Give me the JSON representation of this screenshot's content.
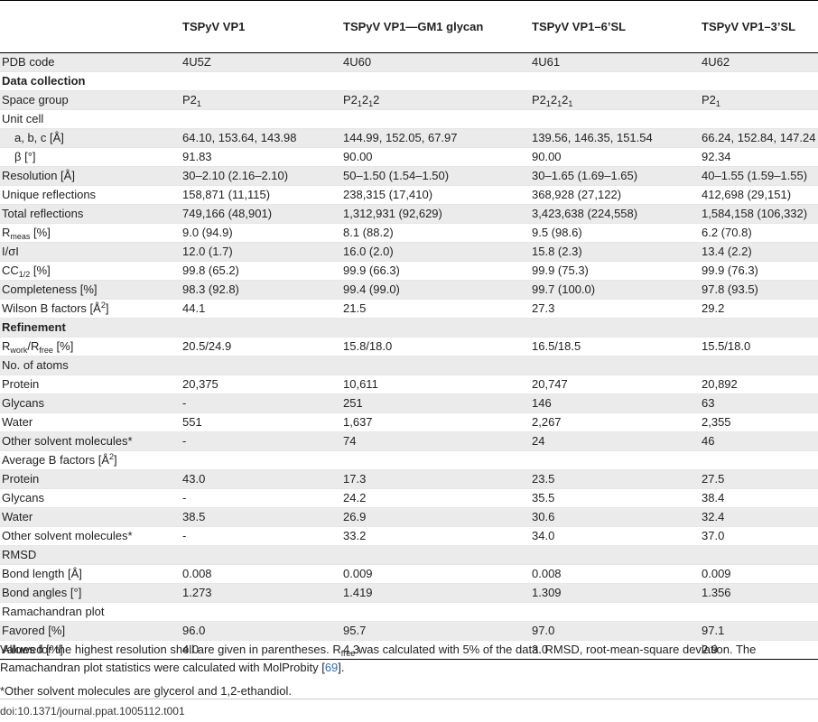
{
  "columns": [
    "",
    "TSPyV VP1",
    "TSPyV VP1—GM1 glycan",
    "TSPyV VP1–6’SL",
    "TSPyV VP1–3’SL"
  ],
  "rows": [
    {
      "label": "PDB code",
      "values": [
        "4U5Z",
        "4U60",
        "4U61",
        "4U62"
      ]
    },
    {
      "label": "Data collection",
      "section": true
    },
    {
      "label": "Space group",
      "values": [
        "P2₁",
        "P2₁2₁2",
        "P2₁2₁2₁",
        "P2₁"
      ]
    },
    {
      "label": "Unit cell",
      "values": [
        "",
        "",
        "",
        ""
      ]
    },
    {
      "label": "a, b, c [Å]",
      "indent": true,
      "values": [
        "64.10, 153.64, 143.98",
        "144.99, 152.05, 67.97",
        "139.56, 146.35, 151.54",
        "66.24, 152.84, 147.24"
      ]
    },
    {
      "label": "β [°]",
      "indent": true,
      "values": [
        "91.83",
        "90.00",
        "90.00",
        "92.34"
      ]
    },
    {
      "label": "Resolution [Å]",
      "values": [
        "30–2.10 (2.16–2.10)",
        "50–1.50 (1.54–1.50)",
        "30–1.65 (1.69–1.65)",
        "40–1.55 (1.59–1.55)"
      ]
    },
    {
      "label": "Unique reflections",
      "values": [
        "158,871 (11,115)",
        "238,315 (17,410)",
        "368,928 (27,122)",
        "412,698 (29,151)"
      ]
    },
    {
      "label": "Total reflections",
      "values": [
        "749,166 (48,901)",
        "1,312,931 (92,629)",
        "3,423,638 (224,558)",
        "1,584,158 (106,332)"
      ]
    },
    {
      "label": "R_meas [%]",
      "values": [
        "9.0 (94.9)",
        "8.1 (88.2)",
        "9.5 (98.6)",
        "6.2 (70.8)"
      ]
    },
    {
      "label": "I/σI",
      "values": [
        "12.0 (1.7)",
        "16.0 (2.0)",
        "15.8 (2.3)",
        "13.4 (2.2)"
      ]
    },
    {
      "label": "CC1/2 [%]",
      "values": [
        "99.8 (65.2)",
        "99.9 (66.3)",
        "99.9 (75.3)",
        "99.9 (76.3)"
      ]
    },
    {
      "label": "Completeness [%]",
      "values": [
        "98.3 (92.8)",
        "99.4 (99.0)",
        "99.7 (100.0)",
        "97.8 (93.5)"
      ]
    },
    {
      "label": "Wilson B factors [Å2]",
      "values": [
        "44.1",
        "21.5",
        "27.3",
        "29.2"
      ]
    },
    {
      "label": "Refinement",
      "section": true
    },
    {
      "label": "Rwork/Rfree [%]",
      "values": [
        "20.5/24.9",
        "15.8/18.0",
        "16.5/18.5",
        "15.5/18.0"
      ]
    },
    {
      "label": "No. of atoms",
      "values": [
        "",
        "",
        "",
        ""
      ]
    },
    {
      "label": "Protein",
      "values": [
        "20,375",
        "10,611",
        "20,747",
        "20,892"
      ]
    },
    {
      "label": "Glycans",
      "values": [
        "-",
        "251",
        "146",
        "63"
      ]
    },
    {
      "label": "Water",
      "values": [
        "551",
        "1,637",
        "2,267",
        "2,355"
      ]
    },
    {
      "label": "Other solvent molecules*",
      "values": [
        "-",
        "74",
        "24",
        "46"
      ]
    },
    {
      "label": "Average B factors [Å2]",
      "values": [
        "",
        "",
        "",
        ""
      ]
    },
    {
      "label": "Protein",
      "values": [
        "43.0",
        "17.3",
        "23.5",
        "27.5"
      ]
    },
    {
      "label": "Glycans",
      "values": [
        "-",
        "24.2",
        "35.5",
        "38.4"
      ]
    },
    {
      "label": "Water",
      "values": [
        "38.5",
        "26.9",
        "30.6",
        "32.4"
      ]
    },
    {
      "label": "Other solvent molecules*",
      "values": [
        "-",
        "33.2",
        "34.0",
        "37.0"
      ]
    },
    {
      "label": "RMSD",
      "values": [
        "",
        "",
        "",
        ""
      ]
    },
    {
      "label": "Bond length [Å]",
      "values": [
        "0.008",
        "0.009",
        "0.008",
        "0.009"
      ]
    },
    {
      "label": "Bond angles [°]",
      "values": [
        "1.273",
        "1.419",
        "1.309",
        "1.356"
      ]
    },
    {
      "label": "Ramachandran plot",
      "values": [
        "",
        "",
        "",
        ""
      ]
    },
    {
      "label": "Favored [%]",
      "values": [
        "96.0",
        "95.7",
        "97.0",
        "97.1"
      ]
    },
    {
      "label": "Allowed [%]",
      "values": [
        "4.0",
        "4.3",
        "3.0",
        "2.9"
      ]
    }
  ],
  "footnotes": {
    "line1_a": "Values for the highest resolution shell are given in parentheses. R",
    "line1_sub": "free",
    "line1_b": " was calculated with 5% of the data. RMSD, root-mean-square deviation. The Ramachandran plot statistics were calculated with MolProbity [",
    "line1_ref": "69",
    "line1_c": "].",
    "line2": "*Other solvent molecules are glycerol and 1,2-ethandiol."
  },
  "doi": "doi:10.1371/journal.ppat.1005112.t001"
}
